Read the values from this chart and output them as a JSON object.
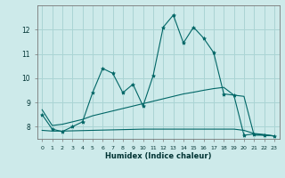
{
  "xlabel": "Humidex (Indice chaleur)",
  "x": [
    0,
    1,
    2,
    3,
    4,
    5,
    6,
    7,
    8,
    9,
    10,
    11,
    12,
    13,
    14,
    15,
    16,
    17,
    18,
    19,
    20,
    21,
    22,
    23
  ],
  "y_main": [
    8.5,
    7.9,
    7.8,
    8.0,
    8.2,
    9.4,
    10.4,
    10.2,
    9.4,
    9.75,
    8.85,
    10.1,
    12.1,
    12.6,
    11.45,
    12.1,
    11.65,
    11.05,
    9.35,
    9.3,
    7.65,
    7.7,
    7.65,
    7.62
  ],
  "y_upper": [
    8.7,
    8.05,
    8.1,
    8.2,
    8.3,
    8.45,
    8.55,
    8.65,
    8.75,
    8.85,
    8.95,
    9.05,
    9.15,
    9.25,
    9.35,
    9.42,
    9.5,
    9.57,
    9.62,
    9.3,
    9.25,
    7.65,
    7.65,
    7.62
  ],
  "y_lower": [
    7.85,
    7.82,
    7.82,
    7.83,
    7.84,
    7.85,
    7.86,
    7.87,
    7.88,
    7.89,
    7.9,
    7.9,
    7.9,
    7.9,
    7.9,
    7.9,
    7.9,
    7.9,
    7.9,
    7.9,
    7.85,
    7.72,
    7.68,
    7.62
  ],
  "bg_color": "#cdeaea",
  "grid_color": "#aad4d4",
  "line_color": "#006666",
  "ylim": [
    7.5,
    13.0
  ],
  "yticks": [
    8,
    9,
    10,
    11,
    12
  ],
  "xticks": [
    0,
    1,
    2,
    3,
    4,
    5,
    6,
    7,
    8,
    9,
    10,
    11,
    12,
    13,
    14,
    15,
    16,
    17,
    18,
    19,
    20,
    21,
    22,
    23
  ]
}
